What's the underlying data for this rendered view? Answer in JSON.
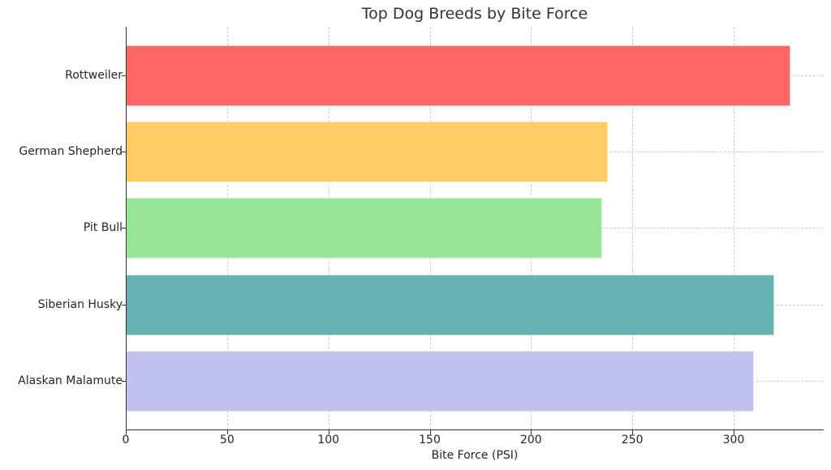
{
  "chart_data": {
    "type": "bar",
    "orientation": "horizontal",
    "title": "Top Dog Breeds by Bite Force",
    "xlabel": "Bite Force (PSI)",
    "ylabel": "",
    "categories": [
      "Rottweiler",
      "German Shepherd",
      "Pit Bull",
      "Siberian Husky",
      "Alaskan Malamute"
    ],
    "values": [
      328,
      238,
      235,
      320,
      310
    ],
    "colors": [
      "#ff6666",
      "#ffcc66",
      "#99e699",
      "#66b2b2",
      "#c2c2f0"
    ],
    "xlim": [
      0,
      344
    ],
    "xticks": [
      "0",
      "50",
      "100",
      "150",
      "200",
      "250",
      "300"
    ],
    "grid": true,
    "legend": null
  }
}
